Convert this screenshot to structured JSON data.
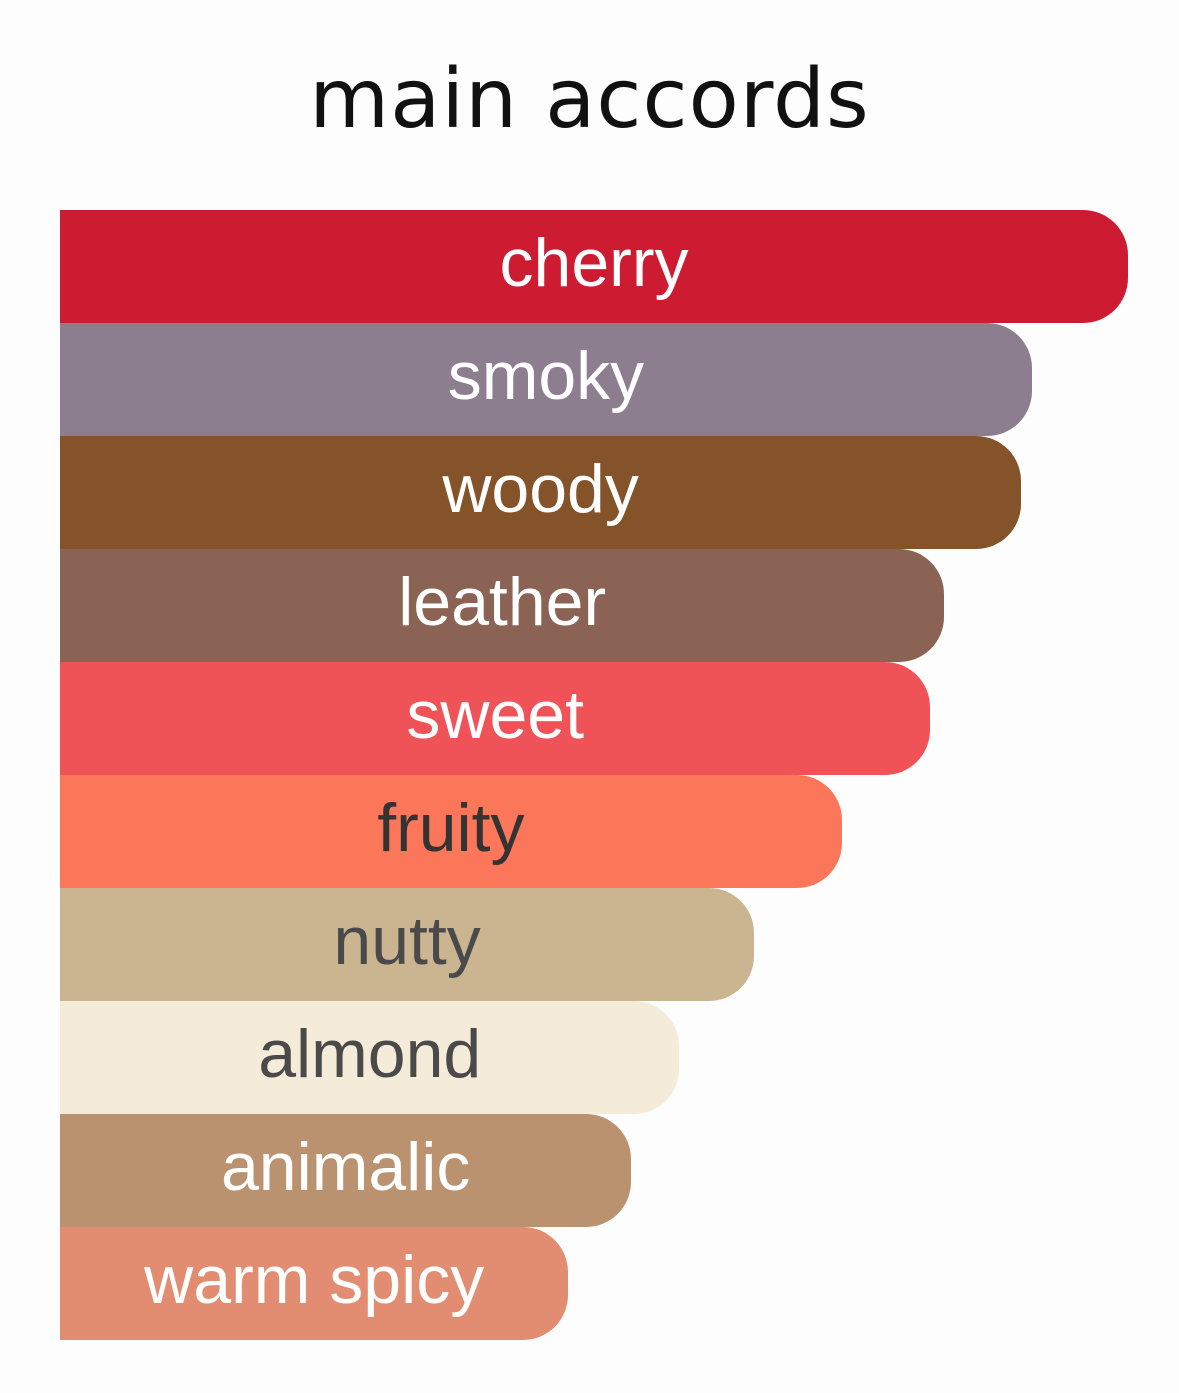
{
  "chart_data": {
    "type": "bar",
    "orientation": "horizontal",
    "title": "main accords",
    "unit": "percent of strongest accord",
    "categories": [
      "cherry",
      "smoky",
      "woody",
      "leather",
      "sweet",
      "fruity",
      "nutty",
      "almond",
      "animalic",
      "warm spicy"
    ],
    "values": [
      100,
      91,
      90,
      82.8,
      81.5,
      73.2,
      65,
      58,
      53.5,
      47.6
    ],
    "colors": [
      "#CD1C32",
      "#8C7E8F",
      "#845329",
      "#8B6355",
      "#EF5357",
      "#FC765A",
      "#CBB590",
      "#F5EBD9",
      "#BB9270",
      "#E28D71"
    ],
    "label_colors": [
      "#ffffff",
      "#ffffff",
      "#ffffff",
      "#ffffff",
      "#ffffff",
      "#333333",
      "#4a4a4a",
      "#4a4a4a",
      "#ffffff",
      "#ffffff"
    ],
    "xlim": [
      0,
      100
    ],
    "grid": false,
    "legend": "none"
  }
}
